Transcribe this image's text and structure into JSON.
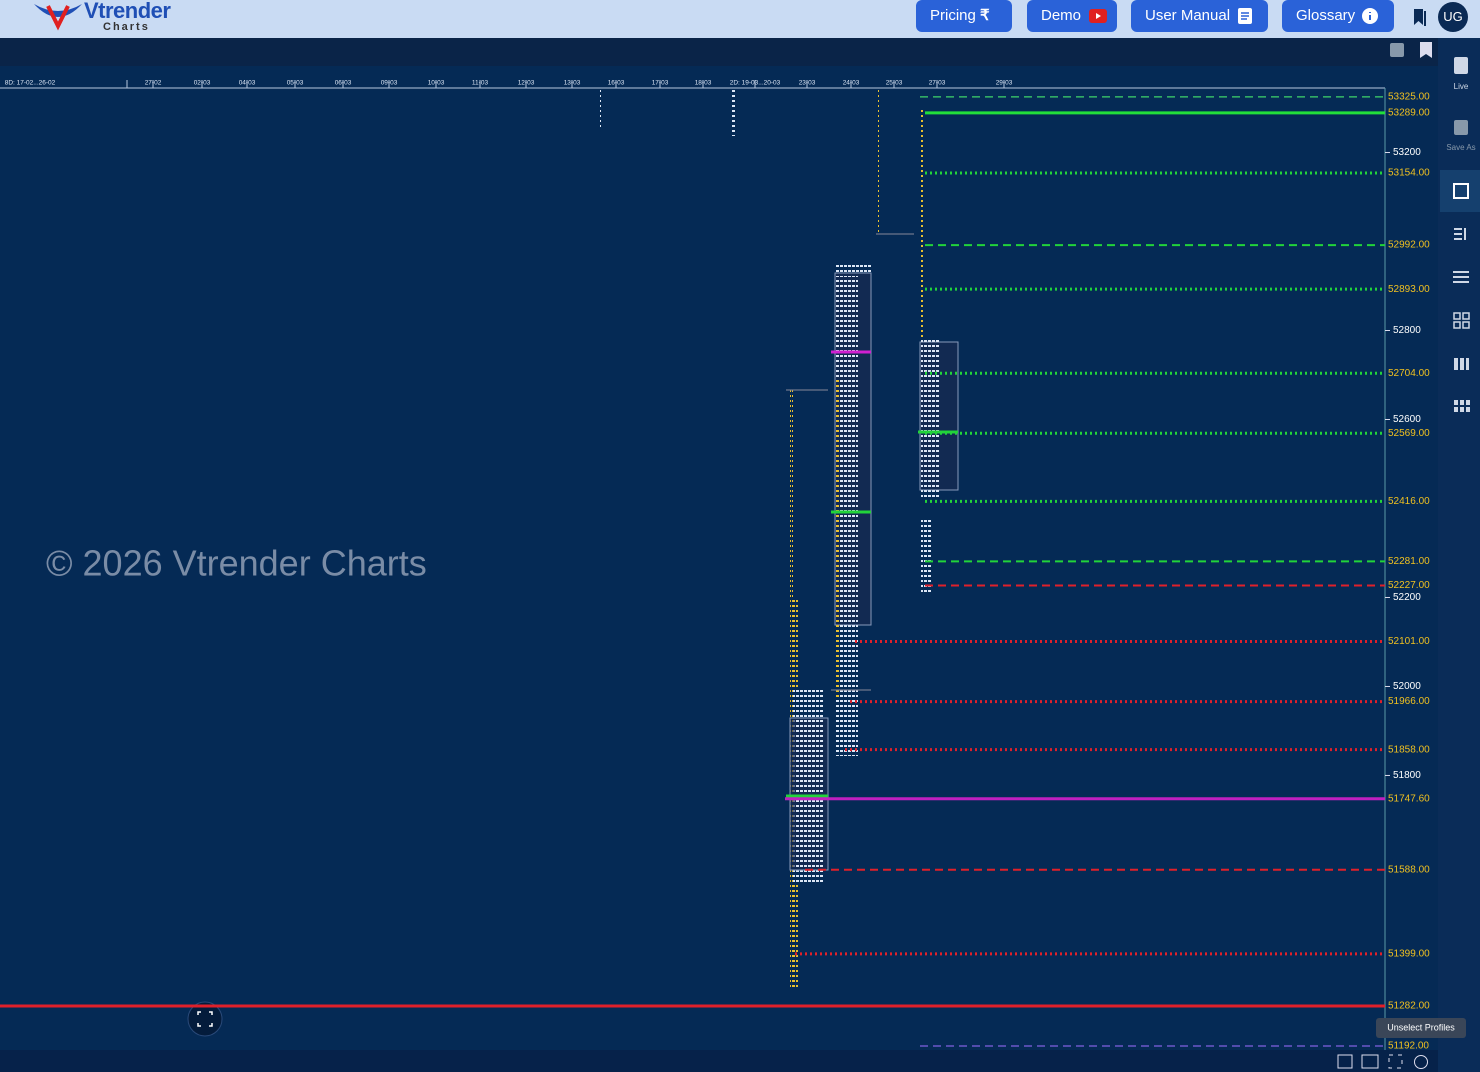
{
  "header": {
    "logo": "Vtrender",
    "logo_sub": "Charts",
    "buttons": [
      {
        "label": "Pricing",
        "icon": "₹"
      },
      {
        "label": "Demo"
      },
      {
        "label": "User Manual"
      },
      {
        "label": "Glossary"
      }
    ],
    "avatar": "UG"
  },
  "sidebar": {
    "items": [
      "Live",
      "Save As"
    ]
  },
  "watermark": "© 2026 Vtrender Charts",
  "tooltip": "Unselect Profiles",
  "chart_data": {
    "type": "levels",
    "dates": [
      "8D: 17-02...26-02",
      "27-02",
      "02-03",
      "04-03",
      "05-03",
      "06-03",
      "09-03",
      "10-03",
      "11-03",
      "12-03",
      "13-03",
      "16-03",
      "17-03",
      "18-03",
      "2D: 19-03...20-03",
      "23-03",
      "24-03",
      "25-03",
      "27-03",
      "29-03"
    ],
    "ylim": [
      51183,
      53345
    ],
    "yticks": [
      53200,
      52800,
      52600,
      52200,
      52000,
      51800
    ],
    "levels": {
      "values": [
        53325,
        53289,
        53154,
        52992,
        52893,
        52704,
        52569,
        52416,
        52281,
        52227,
        52101,
        51966,
        51858,
        51747.6,
        51588,
        51399,
        51282,
        51192
      ],
      "value_labels": [
        "53325.00",
        "53289.00",
        "53154.00",
        "52992.00",
        "52893.00",
        "52704.00",
        "52569.00",
        "52416.00",
        "52281.00",
        "52227.00",
        "52101.00",
        "51966.00",
        "51858.00",
        "51747.60",
        "51588.00",
        "51399.00",
        "51282.00",
        "51192.00"
      ],
      "colors": [
        "#3fd46a",
        "#22e03a",
        "#22d33a",
        "#22d33a",
        "#22d33a",
        "#22d33a",
        "#22d33a",
        "#22d33a",
        "#22d33a",
        "#e0202a",
        "#e0202a",
        "#e0202a",
        "#e0202a",
        "#c020c0",
        "#e0202a",
        "#e0202a",
        "#e0202a",
        "#8060e0"
      ],
      "styles": [
        "dashed",
        "solid",
        "dotted",
        "dashed",
        "dotted",
        "dotted",
        "dotted",
        "dotted",
        "dashed",
        "dashed",
        "dotted",
        "dotted",
        "dotted",
        "solid",
        "dashed",
        "dotted",
        "solid",
        "dashed"
      ]
    }
  }
}
